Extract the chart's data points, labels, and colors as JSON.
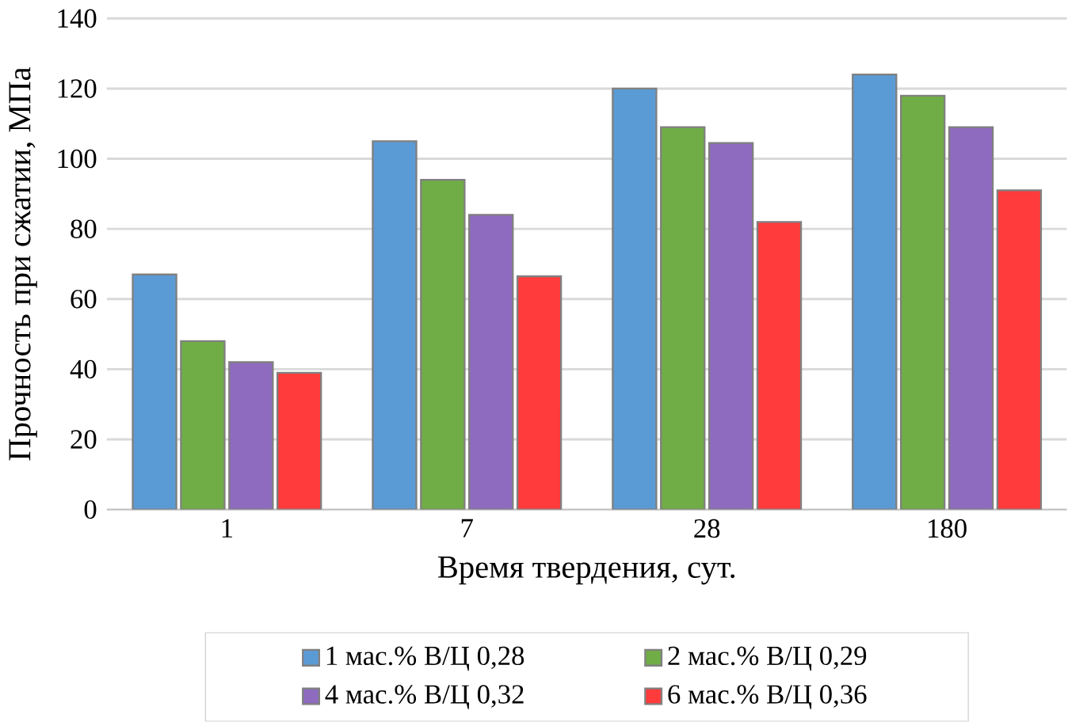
{
  "chart_data": {
    "type": "bar",
    "xlabel": "Время твердения, сут.",
    "ylabel": "Прочность при сжатии, МПа",
    "categories": [
      "1",
      "7",
      "28",
      "180"
    ],
    "series": [
      {
        "name": "1 мас.% В/Ц 0,28",
        "color": "#5b9bd5",
        "values": [
          67,
          105,
          120,
          124
        ]
      },
      {
        "name": "2 мас.% В/Ц 0,29",
        "color": "#70ad47",
        "values": [
          48,
          94,
          109,
          118
        ]
      },
      {
        "name": "4 мас.% В/Ц 0,32",
        "color": "#8e6bbf",
        "values": [
          42,
          84,
          104.5,
          109
        ]
      },
      {
        "name": "6 мас.% В/Ц 0,36",
        "color": "#ff3b3b",
        "values": [
          39,
          66.5,
          82,
          91
        ]
      }
    ],
    "ylim": [
      0,
      140
    ],
    "yticks": [
      0,
      20,
      40,
      60,
      80,
      100,
      120,
      140
    ],
    "grid": "y",
    "legend": "bottom"
  }
}
